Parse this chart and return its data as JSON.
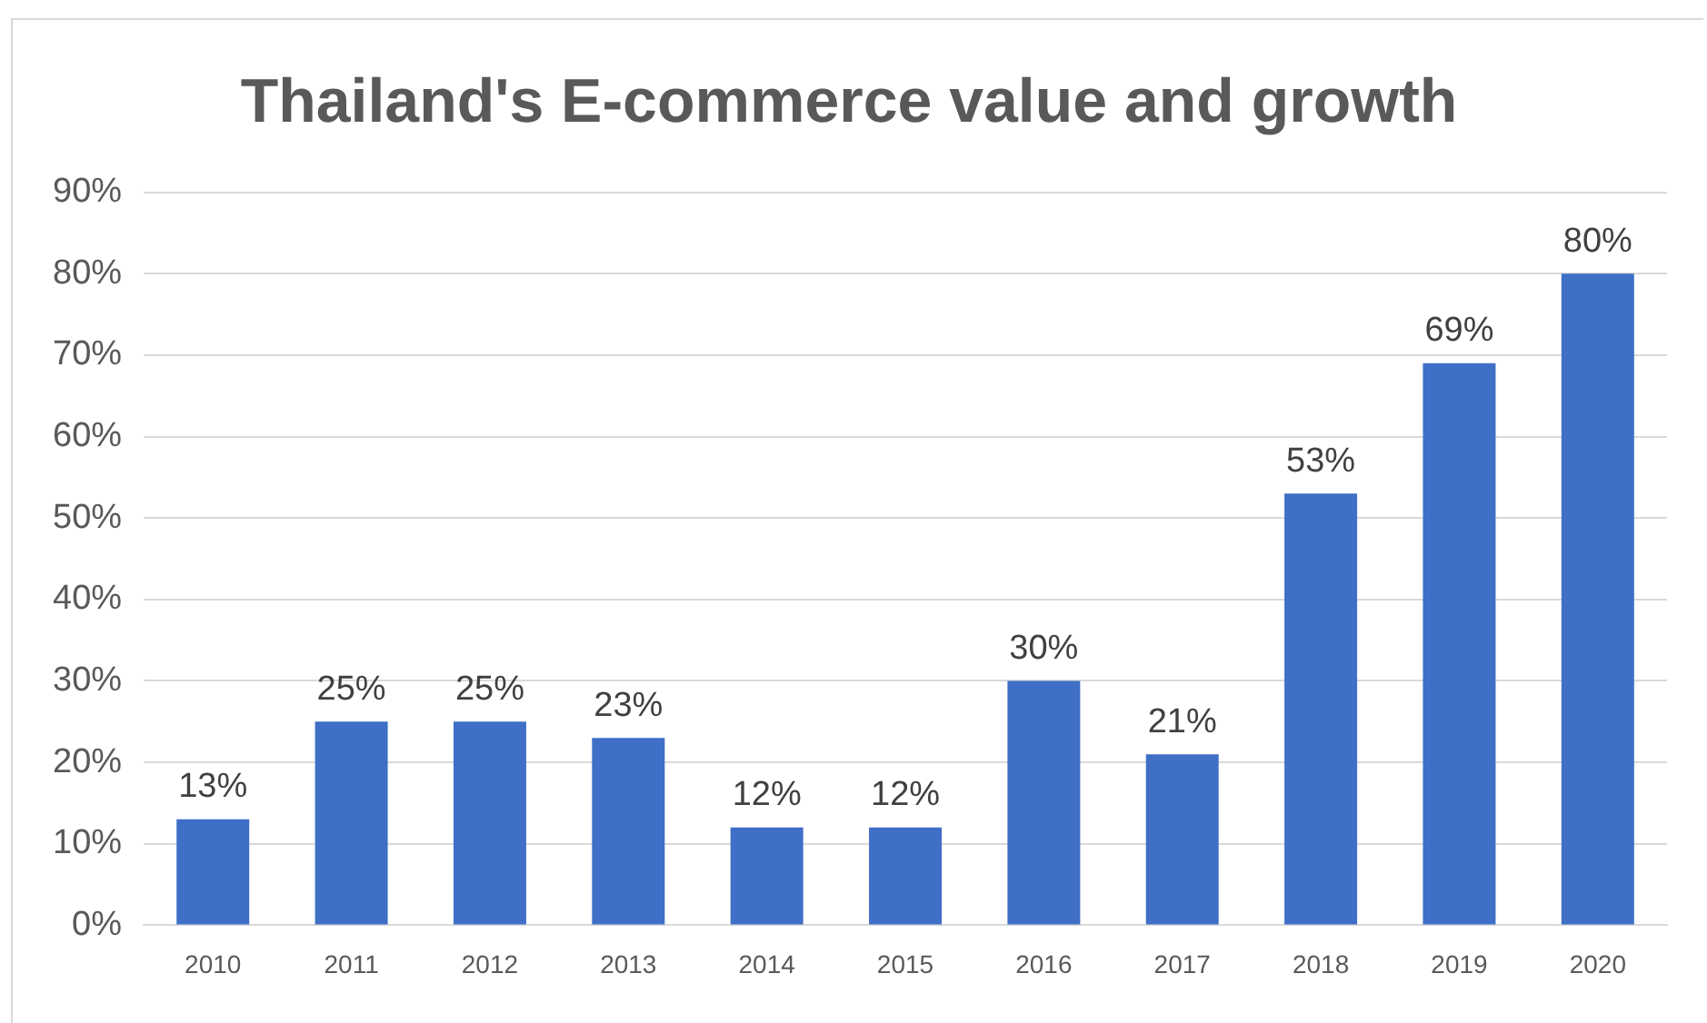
{
  "chart_data": {
    "type": "bar",
    "title": "Thailand's E-commerce value and growth",
    "categories": [
      "2010",
      "2011",
      "2012",
      "2013",
      "2014",
      "2015",
      "2016",
      "2017",
      "2018",
      "2019",
      "2020"
    ],
    "values": [
      13,
      25,
      25,
      23,
      12,
      12,
      30,
      21,
      53,
      69,
      80
    ],
    "value_labels": [
      "13%",
      "25%",
      "25%",
      "23%",
      "12%",
      "12%",
      "30%",
      "21%",
      "53%",
      "69%",
      "80%"
    ],
    "color": "#3f6fc6",
    "ylim": [
      0,
      90
    ],
    "yticks": [
      {
        "value": 0,
        "label": "0%"
      },
      {
        "value": 10,
        "label": "10%"
      },
      {
        "value": 20,
        "label": "20%"
      },
      {
        "value": 30,
        "label": "30%"
      },
      {
        "value": 40,
        "label": "40%"
      },
      {
        "value": 50,
        "label": "50%"
      },
      {
        "value": 60,
        "label": "60%"
      },
      {
        "value": 70,
        "label": "70%"
      },
      {
        "value": 80,
        "label": "80%"
      },
      {
        "value": 90,
        "label": "90%"
      }
    ],
    "grid": "y"
  }
}
